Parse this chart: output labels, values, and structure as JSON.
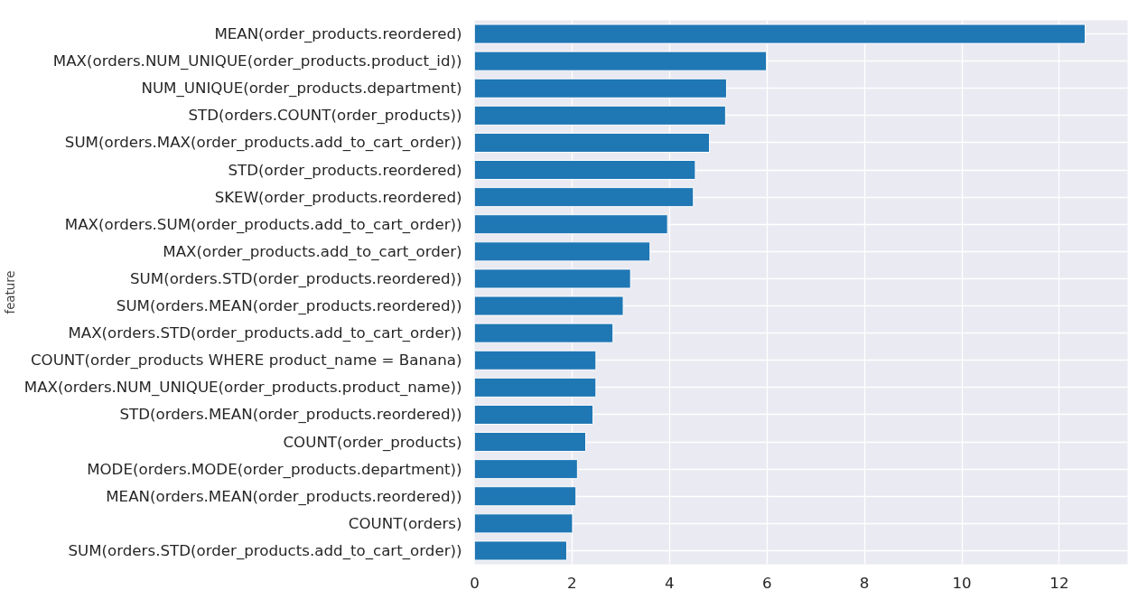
{
  "chart_data": {
    "type": "bar",
    "orientation": "horizontal",
    "ylabel": "feature",
    "categories": [
      "MEAN(order_products.reordered)",
      "MAX(orders.NUM_UNIQUE(order_products.product_id))",
      "NUM_UNIQUE(order_products.department)",
      "STD(orders.COUNT(order_products))",
      "SUM(orders.MAX(order_products.add_to_cart_order))",
      "STD(order_products.reordered)",
      "SKEW(order_products.reordered)",
      "MAX(orders.SUM(order_products.add_to_cart_order))",
      "MAX(order_products.add_to_cart_order)",
      "SUM(orders.STD(order_products.reordered))",
      "SUM(orders.MEAN(order_products.reordered))",
      "MAX(orders.STD(order_products.add_to_cart_order))",
      "COUNT(order_products WHERE product_name = Banana)",
      "MAX(orders.NUM_UNIQUE(order_products.product_name))",
      "STD(orders.MEAN(order_products.reordered))",
      "COUNT(order_products)",
      "MODE(orders.MODE(order_products.department))",
      "MEAN(orders.MEAN(order_products.reordered))",
      "COUNT(orders)",
      "SUM(orders.STD(order_products.add_to_cart_order))"
    ],
    "values": [
      12.53,
      5.99,
      5.17,
      5.15,
      4.82,
      4.53,
      4.49,
      3.96,
      3.6,
      3.2,
      3.05,
      2.84,
      2.49,
      2.49,
      2.43,
      2.28,
      2.11,
      2.08,
      2.01,
      1.89
    ],
    "color": "#1f77b4",
    "xlim": [
      0,
      13.4
    ],
    "xticks": [
      0,
      2,
      4,
      6,
      8,
      10,
      12
    ],
    "grid": true
  }
}
